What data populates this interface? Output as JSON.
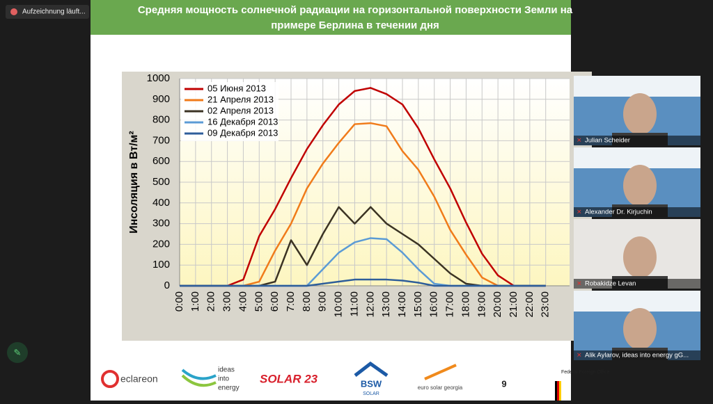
{
  "recording": "Aufzeichnung läuft...",
  "slide": {
    "title": [
      "Средняя мощность солнечной радиации на горизонтальной поверхности Земли на",
      "примере Берлина в течении дня"
    ],
    "page_number": "9"
  },
  "logos": [
    "eclareon",
    "ideas",
    "into",
    "energy",
    "SOLAR 23",
    "BSW",
    "SOLAR",
    "euro solar georgia",
    "Federal Foreign Office"
  ],
  "participants": [
    {
      "name": "Julian Scheider"
    },
    {
      "name": "Alexander Dr. Kirjuchin"
    },
    {
      "name": "Robakidze Levan"
    },
    {
      "name": "Alik Aylarov, ideas into energy gG..."
    }
  ],
  "chart_data": {
    "type": "line",
    "y_label": "Инсоляция в Вт/м²",
    "categories": [
      "0:00",
      "1:00",
      "2:00",
      "3:00",
      "4:00",
      "5:00",
      "6:00",
      "7:00",
      "8:00",
      "9:00",
      "10:00",
      "11:00",
      "12:00",
      "13:00",
      "14:00",
      "15:00",
      "16:00",
      "17:00",
      "18:00",
      "19:00",
      "20:00",
      "21:00",
      "22:00",
      "23:00"
    ],
    "series": [
      {
        "name": "05 Июня 2013",
        "color": "#c00000",
        "values": [
          0,
          0,
          0,
          0,
          30,
          240,
          370,
          520,
          660,
          775,
          875,
          940,
          955,
          925,
          875,
          760,
          610,
          470,
          305,
          155,
          50,
          0,
          0,
          0
        ]
      },
      {
        "name": "21 Апреля 2013",
        "color": "#f07b1a",
        "values": [
          0,
          0,
          0,
          0,
          0,
          20,
          170,
          300,
          470,
          590,
          690,
          780,
          785,
          770,
          650,
          560,
          430,
          270,
          150,
          40,
          0,
          0,
          0,
          0
        ]
      },
      {
        "name": "02 Апреля 2013",
        "color": "#3b3323",
        "values": [
          0,
          0,
          0,
          0,
          0,
          0,
          20,
          220,
          100,
          250,
          380,
          300,
          380,
          300,
          250,
          200,
          130,
          60,
          10,
          0,
          0,
          0,
          0,
          0
        ]
      },
      {
        "name": "16 Декабря 2013",
        "color": "#5b9bd5",
        "values": [
          0,
          0,
          0,
          0,
          0,
          0,
          0,
          0,
          0,
          80,
          160,
          210,
          230,
          225,
          160,
          80,
          10,
          0,
          0,
          0,
          0,
          0,
          0,
          0
        ]
      },
      {
        "name": "09 Декабря 2013",
        "color": "#2e5e9a",
        "values": [
          0,
          0,
          0,
          0,
          0,
          0,
          0,
          0,
          0,
          10,
          20,
          30,
          30,
          30,
          25,
          15,
          0,
          0,
          0,
          0,
          0,
          0,
          0,
          0
        ]
      }
    ],
    "ylim": [
      0,
      1000
    ],
    "yticks": [
      0,
      100,
      200,
      300,
      400,
      500,
      600,
      700,
      800,
      900,
      1000
    ],
    "grid": true,
    "legend": "top-left"
  }
}
